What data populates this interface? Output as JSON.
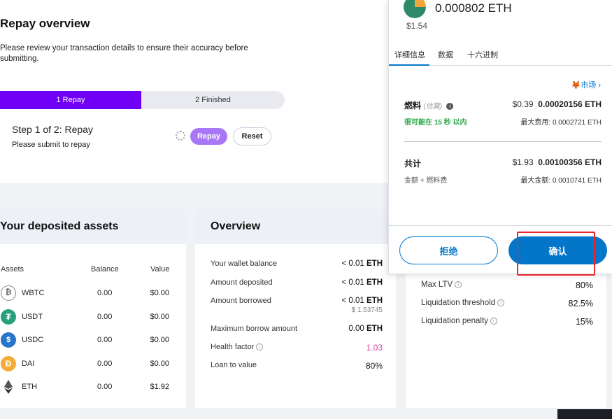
{
  "repay_card": {
    "title": "Repay overview",
    "description": "Please review your transaction details to ensure their accuracy before submitting.",
    "steps": [
      "1 Repay",
      "2 Finished"
    ],
    "step_title": "Step 1 of 2: Repay",
    "step_sub": "Please submit to repay",
    "repay_btn": "Repay",
    "reset_btn": "Reset",
    "accent": "#7000f5"
  },
  "assets_card": {
    "title": "Your deposited assets",
    "headers": {
      "asset": "Assets",
      "balance": "Balance",
      "value": "Value"
    },
    "rows": [
      {
        "name": "WBTC",
        "balance": "0.00",
        "value": "$0.00",
        "icon": "bitcoin-icon"
      },
      {
        "name": "USDT",
        "balance": "0.00",
        "value": "$0.00",
        "icon": "tether-icon"
      },
      {
        "name": "USDC",
        "balance": "0.00",
        "value": "$0.00",
        "icon": "usdc-icon"
      },
      {
        "name": "DAI",
        "balance": "0.00",
        "value": "$0.00",
        "icon": "dai-icon"
      },
      {
        "name": "ETH",
        "balance": "0.00",
        "value": "$1.92",
        "icon": "ethereum-icon"
      }
    ]
  },
  "overview_card": {
    "title": "Overview",
    "rows": [
      {
        "label": "Your wallet balance",
        "value": "< 0.01",
        "unit": "ETH"
      },
      {
        "label": "Amount deposited",
        "value": "< 0.01",
        "unit": "ETH"
      },
      {
        "label": "Amount borrowed",
        "value": "< 0.01",
        "unit": "ETH",
        "sub": "$ 1.53745"
      },
      {
        "label": "Maximum borrow amount",
        "value": "0.00",
        "unit": "ETH"
      },
      {
        "label": "Health factor",
        "value": "1.03",
        "unit": ""
      },
      {
        "label": "Loan to value",
        "value": "80%",
        "unit": ""
      }
    ]
  },
  "right_card": {
    "rows": [
      {
        "label": "Max LTV",
        "value": "80%"
      },
      {
        "label": "Liquidation threshold",
        "value": "82.5%"
      },
      {
        "label": "Liquidation penalty",
        "value": "15%"
      }
    ]
  },
  "metamask": {
    "amount": "0.000802 ETH",
    "usd": "$1.54",
    "tabs": [
      "详细信息",
      "数据",
      "十六进制"
    ],
    "market": "市场",
    "gas_label": "燃料",
    "gas_estimate": "(估算)",
    "gas_usd": "$0.39",
    "gas_eth": "0.00020156 ETH",
    "gas_likely": "很可能在 15 秒 以内",
    "gas_max": "最大费用:",
    "gas_max_val": "0.0002721 ETH",
    "total_label": "共计",
    "total_usd": "$1.93",
    "total_eth": "0.00100356 ETH",
    "total_sub": "金额 + 燃料费",
    "total_max": "最大金额:",
    "total_max_val": "0.0010741 ETH",
    "reject": "拒绝",
    "confirm": "确认",
    "brand_blue": "#0376c9",
    "highlight": "#e8262d"
  }
}
